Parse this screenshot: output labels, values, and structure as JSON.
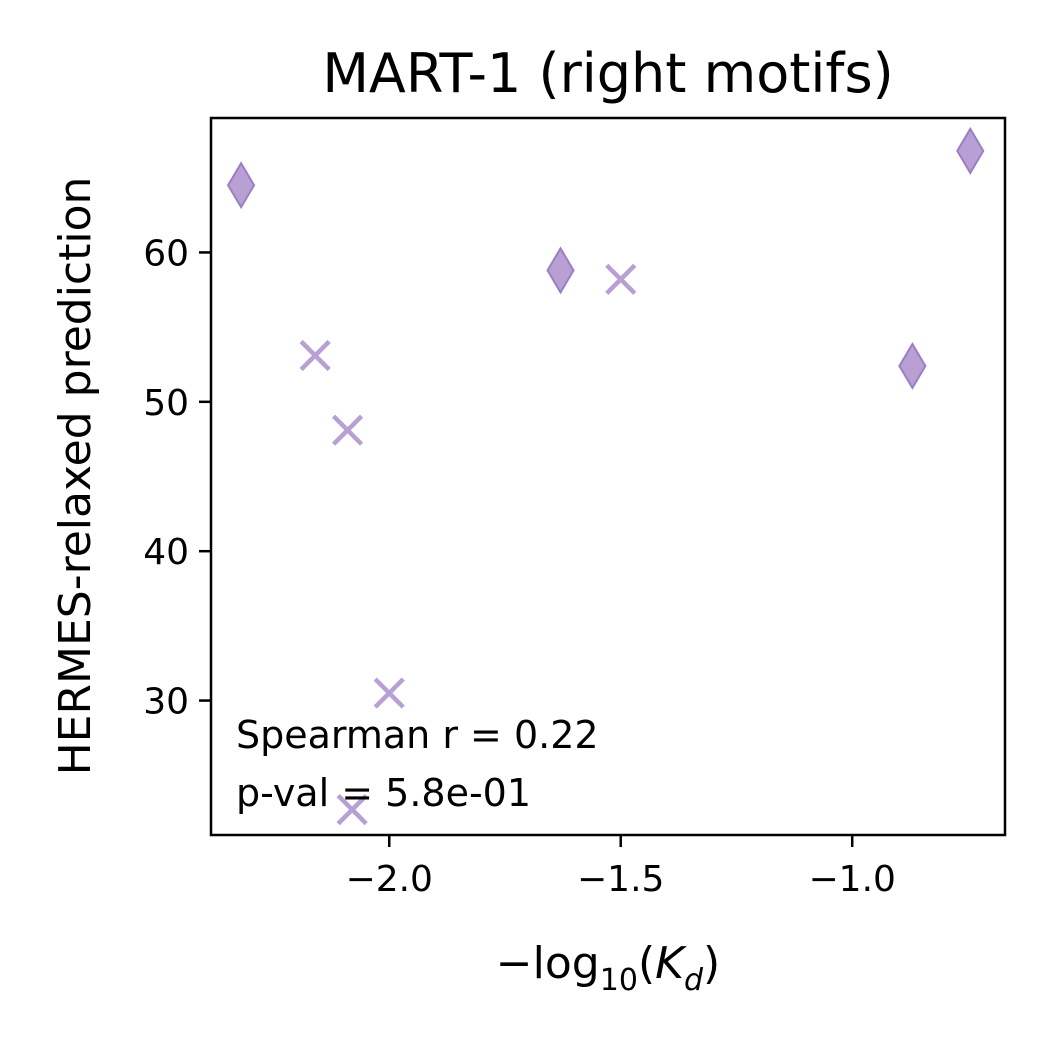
{
  "chart_data": {
    "type": "scatter",
    "title": "MART-1 (right motifs)",
    "xlabel": {
      "prefix": "−log",
      "subscript": "10",
      "open": "(",
      "var": "K",
      "var_subscript": "d",
      "close": ")"
    },
    "ylabel": "HERMES-relaxed prediction",
    "xlim": [
      -2.385,
      -0.67
    ],
    "ylim": [
      21,
      69
    ],
    "xticks": [
      -2.0,
      -1.5,
      -1.0
    ],
    "xtick_labels": [
      "−2.0",
      "−1.5",
      "−1.0"
    ],
    "yticks": [
      30,
      40,
      50,
      60
    ],
    "ytick_labels": [
      "30",
      "40",
      "50",
      "60"
    ],
    "grid": false,
    "color": "#b89fd4",
    "series": [
      {
        "marker": "diamond",
        "points": [
          {
            "x": -2.32,
            "y": 64.5
          },
          {
            "x": -1.63,
            "y": 58.8
          },
          {
            "x": -0.87,
            "y": 52.4
          },
          {
            "x": -0.745,
            "y": 66.8
          }
        ]
      },
      {
        "marker": "x",
        "points": [
          {
            "x": -2.16,
            "y": 53.1
          },
          {
            "x": -2.09,
            "y": 48.1
          },
          {
            "x": -1.5,
            "y": 58.2
          },
          {
            "x": -2.0,
            "y": 30.5
          },
          {
            "x": -2.08,
            "y": 22.7
          }
        ]
      }
    ],
    "annotations": [
      "Spearman r = 0.22",
      "p-val = 5.8e-01"
    ]
  }
}
